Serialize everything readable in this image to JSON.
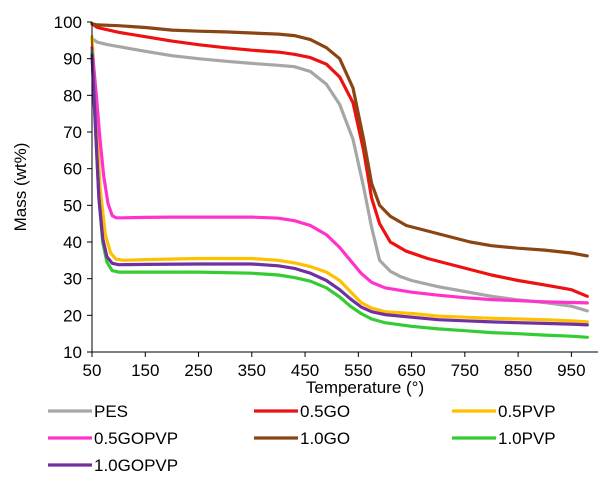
{
  "chart_data": {
    "type": "line",
    "title": "",
    "xlabel": "Temperature (°)",
    "ylabel": "Mass (wt%)",
    "xlim": [
      50,
      1000
    ],
    "ylim": [
      10,
      100
    ],
    "x_ticks": [
      50,
      150,
      250,
      350,
      450,
      550,
      650,
      750,
      850,
      950
    ],
    "y_ticks": [
      10,
      20,
      30,
      40,
      50,
      60,
      70,
      80,
      90,
      100
    ],
    "grid": false,
    "legend_position": "bottom",
    "series": [
      {
        "name": "PES",
        "color": "#a6a6a6",
        "points": [
          [
            50,
            95.5
          ],
          [
            60,
            94.5
          ],
          [
            80,
            93.8
          ],
          [
            100,
            93.3
          ],
          [
            150,
            92.0
          ],
          [
            200,
            90.8
          ],
          [
            250,
            90.0
          ],
          [
            300,
            89.3
          ],
          [
            350,
            88.7
          ],
          [
            400,
            88.2
          ],
          [
            430,
            87.8
          ],
          [
            460,
            86.5
          ],
          [
            490,
            83.0
          ],
          [
            515,
            77.5
          ],
          [
            540,
            68.0
          ],
          [
            560,
            55.0
          ],
          [
            575,
            44.0
          ],
          [
            590,
            35.0
          ],
          [
            610,
            32.0
          ],
          [
            630,
            30.5
          ],
          [
            650,
            29.5
          ],
          [
            700,
            27.8
          ],
          [
            750,
            26.5
          ],
          [
            800,
            25.2
          ],
          [
            850,
            24.2
          ],
          [
            900,
            23.5
          ],
          [
            950,
            22.5
          ],
          [
            980,
            21.2
          ]
        ]
      },
      {
        "name": "0.5GO",
        "color": "#ee1111",
        "points": [
          [
            50,
            99.5
          ],
          [
            60,
            98.5
          ],
          [
            100,
            97.2
          ],
          [
            150,
            96.0
          ],
          [
            200,
            94.8
          ],
          [
            250,
            93.8
          ],
          [
            300,
            93.0
          ],
          [
            350,
            92.3
          ],
          [
            400,
            91.8
          ],
          [
            430,
            91.2
          ],
          [
            460,
            90.3
          ],
          [
            490,
            88.5
          ],
          [
            515,
            85.0
          ],
          [
            540,
            78.0
          ],
          [
            560,
            65.0
          ],
          [
            575,
            52.0
          ],
          [
            590,
            45.0
          ],
          [
            610,
            40.0
          ],
          [
            640,
            37.5
          ],
          [
            680,
            35.5
          ],
          [
            720,
            34.0
          ],
          [
            760,
            32.5
          ],
          [
            800,
            31.0
          ],
          [
            850,
            29.5
          ],
          [
            900,
            28.3
          ],
          [
            950,
            27.0
          ],
          [
            980,
            25.2
          ]
        ]
      },
      {
        "name": "0.5PVP",
        "color": "#ffc000",
        "points": [
          [
            50,
            96.0
          ],
          [
            58,
            75.0
          ],
          [
            65,
            55.0
          ],
          [
            75,
            42.0
          ],
          [
            85,
            37.0
          ],
          [
            95,
            35.3
          ],
          [
            110,
            35.0
          ],
          [
            150,
            35.2
          ],
          [
            250,
            35.5
          ],
          [
            350,
            35.5
          ],
          [
            400,
            35.0
          ],
          [
            430,
            34.3
          ],
          [
            460,
            33.3
          ],
          [
            490,
            31.8
          ],
          [
            515,
            29.5
          ],
          [
            535,
            26.5
          ],
          [
            555,
            23.5
          ],
          [
            575,
            22.0
          ],
          [
            600,
            21.0
          ],
          [
            650,
            20.5
          ],
          [
            700,
            19.8
          ],
          [
            750,
            19.5
          ],
          [
            800,
            19.2
          ],
          [
            850,
            19.0
          ],
          [
            900,
            18.8
          ],
          [
            950,
            18.5
          ],
          [
            980,
            18.2
          ]
        ]
      },
      {
        "name": "0.5GOPVP",
        "color": "#ff33cc",
        "points": [
          [
            50,
            93.0
          ],
          [
            58,
            80.0
          ],
          [
            65,
            68.0
          ],
          [
            72,
            58.0
          ],
          [
            80,
            50.5
          ],
          [
            88,
            47.2
          ],
          [
            95,
            46.6
          ],
          [
            110,
            46.6
          ],
          [
            150,
            46.7
          ],
          [
            200,
            46.8
          ],
          [
            250,
            46.8
          ],
          [
            300,
            46.8
          ],
          [
            350,
            46.8
          ],
          [
            400,
            46.5
          ],
          [
            430,
            45.8
          ],
          [
            460,
            44.5
          ],
          [
            490,
            42.0
          ],
          [
            515,
            38.5
          ],
          [
            535,
            35.0
          ],
          [
            555,
            31.5
          ],
          [
            575,
            29.0
          ],
          [
            600,
            27.5
          ],
          [
            650,
            26.3
          ],
          [
            700,
            25.5
          ],
          [
            750,
            24.8
          ],
          [
            800,
            24.3
          ],
          [
            850,
            24.0
          ],
          [
            900,
            23.7
          ],
          [
            950,
            23.5
          ],
          [
            980,
            23.4
          ]
        ]
      },
      {
        "name": "1.0GO",
        "color": "#8b4513",
        "points": [
          [
            50,
            99.5
          ],
          [
            60,
            99.2
          ],
          [
            100,
            99.0
          ],
          [
            150,
            98.5
          ],
          [
            200,
            97.8
          ],
          [
            250,
            97.5
          ],
          [
            300,
            97.3
          ],
          [
            350,
            97.0
          ],
          [
            400,
            96.7
          ],
          [
            430,
            96.3
          ],
          [
            460,
            95.2
          ],
          [
            490,
            93.0
          ],
          [
            515,
            90.0
          ],
          [
            540,
            82.0
          ],
          [
            560,
            68.0
          ],
          [
            575,
            56.0
          ],
          [
            590,
            50.0
          ],
          [
            610,
            47.0
          ],
          [
            640,
            44.5
          ],
          [
            680,
            43.0
          ],
          [
            720,
            41.5
          ],
          [
            760,
            40.0
          ],
          [
            800,
            39.0
          ],
          [
            850,
            38.3
          ],
          [
            900,
            37.8
          ],
          [
            950,
            37.0
          ],
          [
            980,
            36.2
          ]
        ]
      },
      {
        "name": "1.0PVP",
        "color": "#33cc33",
        "points": [
          [
            50,
            92.0
          ],
          [
            57,
            70.0
          ],
          [
            63,
            52.0
          ],
          [
            70,
            40.0
          ],
          [
            78,
            34.5
          ],
          [
            88,
            32.2
          ],
          [
            100,
            31.8
          ],
          [
            150,
            31.8
          ],
          [
            250,
            31.8
          ],
          [
            350,
            31.5
          ],
          [
            400,
            31.0
          ],
          [
            430,
            30.3
          ],
          [
            460,
            29.3
          ],
          [
            490,
            27.5
          ],
          [
            515,
            25.0
          ],
          [
            535,
            22.5
          ],
          [
            555,
            20.5
          ],
          [
            575,
            19.0
          ],
          [
            600,
            18.0
          ],
          [
            650,
            17.0
          ],
          [
            700,
            16.3
          ],
          [
            750,
            15.8
          ],
          [
            800,
            15.3
          ],
          [
            850,
            15.0
          ],
          [
            900,
            14.6
          ],
          [
            950,
            14.3
          ],
          [
            980,
            14.0
          ]
        ]
      },
      {
        "name": "1.0GOPVP",
        "color": "#7030a0",
        "points": [
          [
            50,
            91.0
          ],
          [
            57,
            70.0
          ],
          [
            63,
            52.0
          ],
          [
            70,
            41.0
          ],
          [
            78,
            36.0
          ],
          [
            88,
            34.2
          ],
          [
            100,
            33.8
          ],
          [
            150,
            33.9
          ],
          [
            250,
            34.0
          ],
          [
            350,
            34.0
          ],
          [
            400,
            33.5
          ],
          [
            430,
            32.8
          ],
          [
            460,
            31.5
          ],
          [
            490,
            29.5
          ],
          [
            515,
            27.0
          ],
          [
            535,
            24.5
          ],
          [
            555,
            22.3
          ],
          [
            575,
            21.0
          ],
          [
            600,
            20.2
          ],
          [
            650,
            19.5
          ],
          [
            700,
            18.8
          ],
          [
            750,
            18.5
          ],
          [
            800,
            18.2
          ],
          [
            850,
            18.0
          ],
          [
            900,
            17.8
          ],
          [
            950,
            17.6
          ],
          [
            980,
            17.4
          ]
        ]
      }
    ]
  }
}
